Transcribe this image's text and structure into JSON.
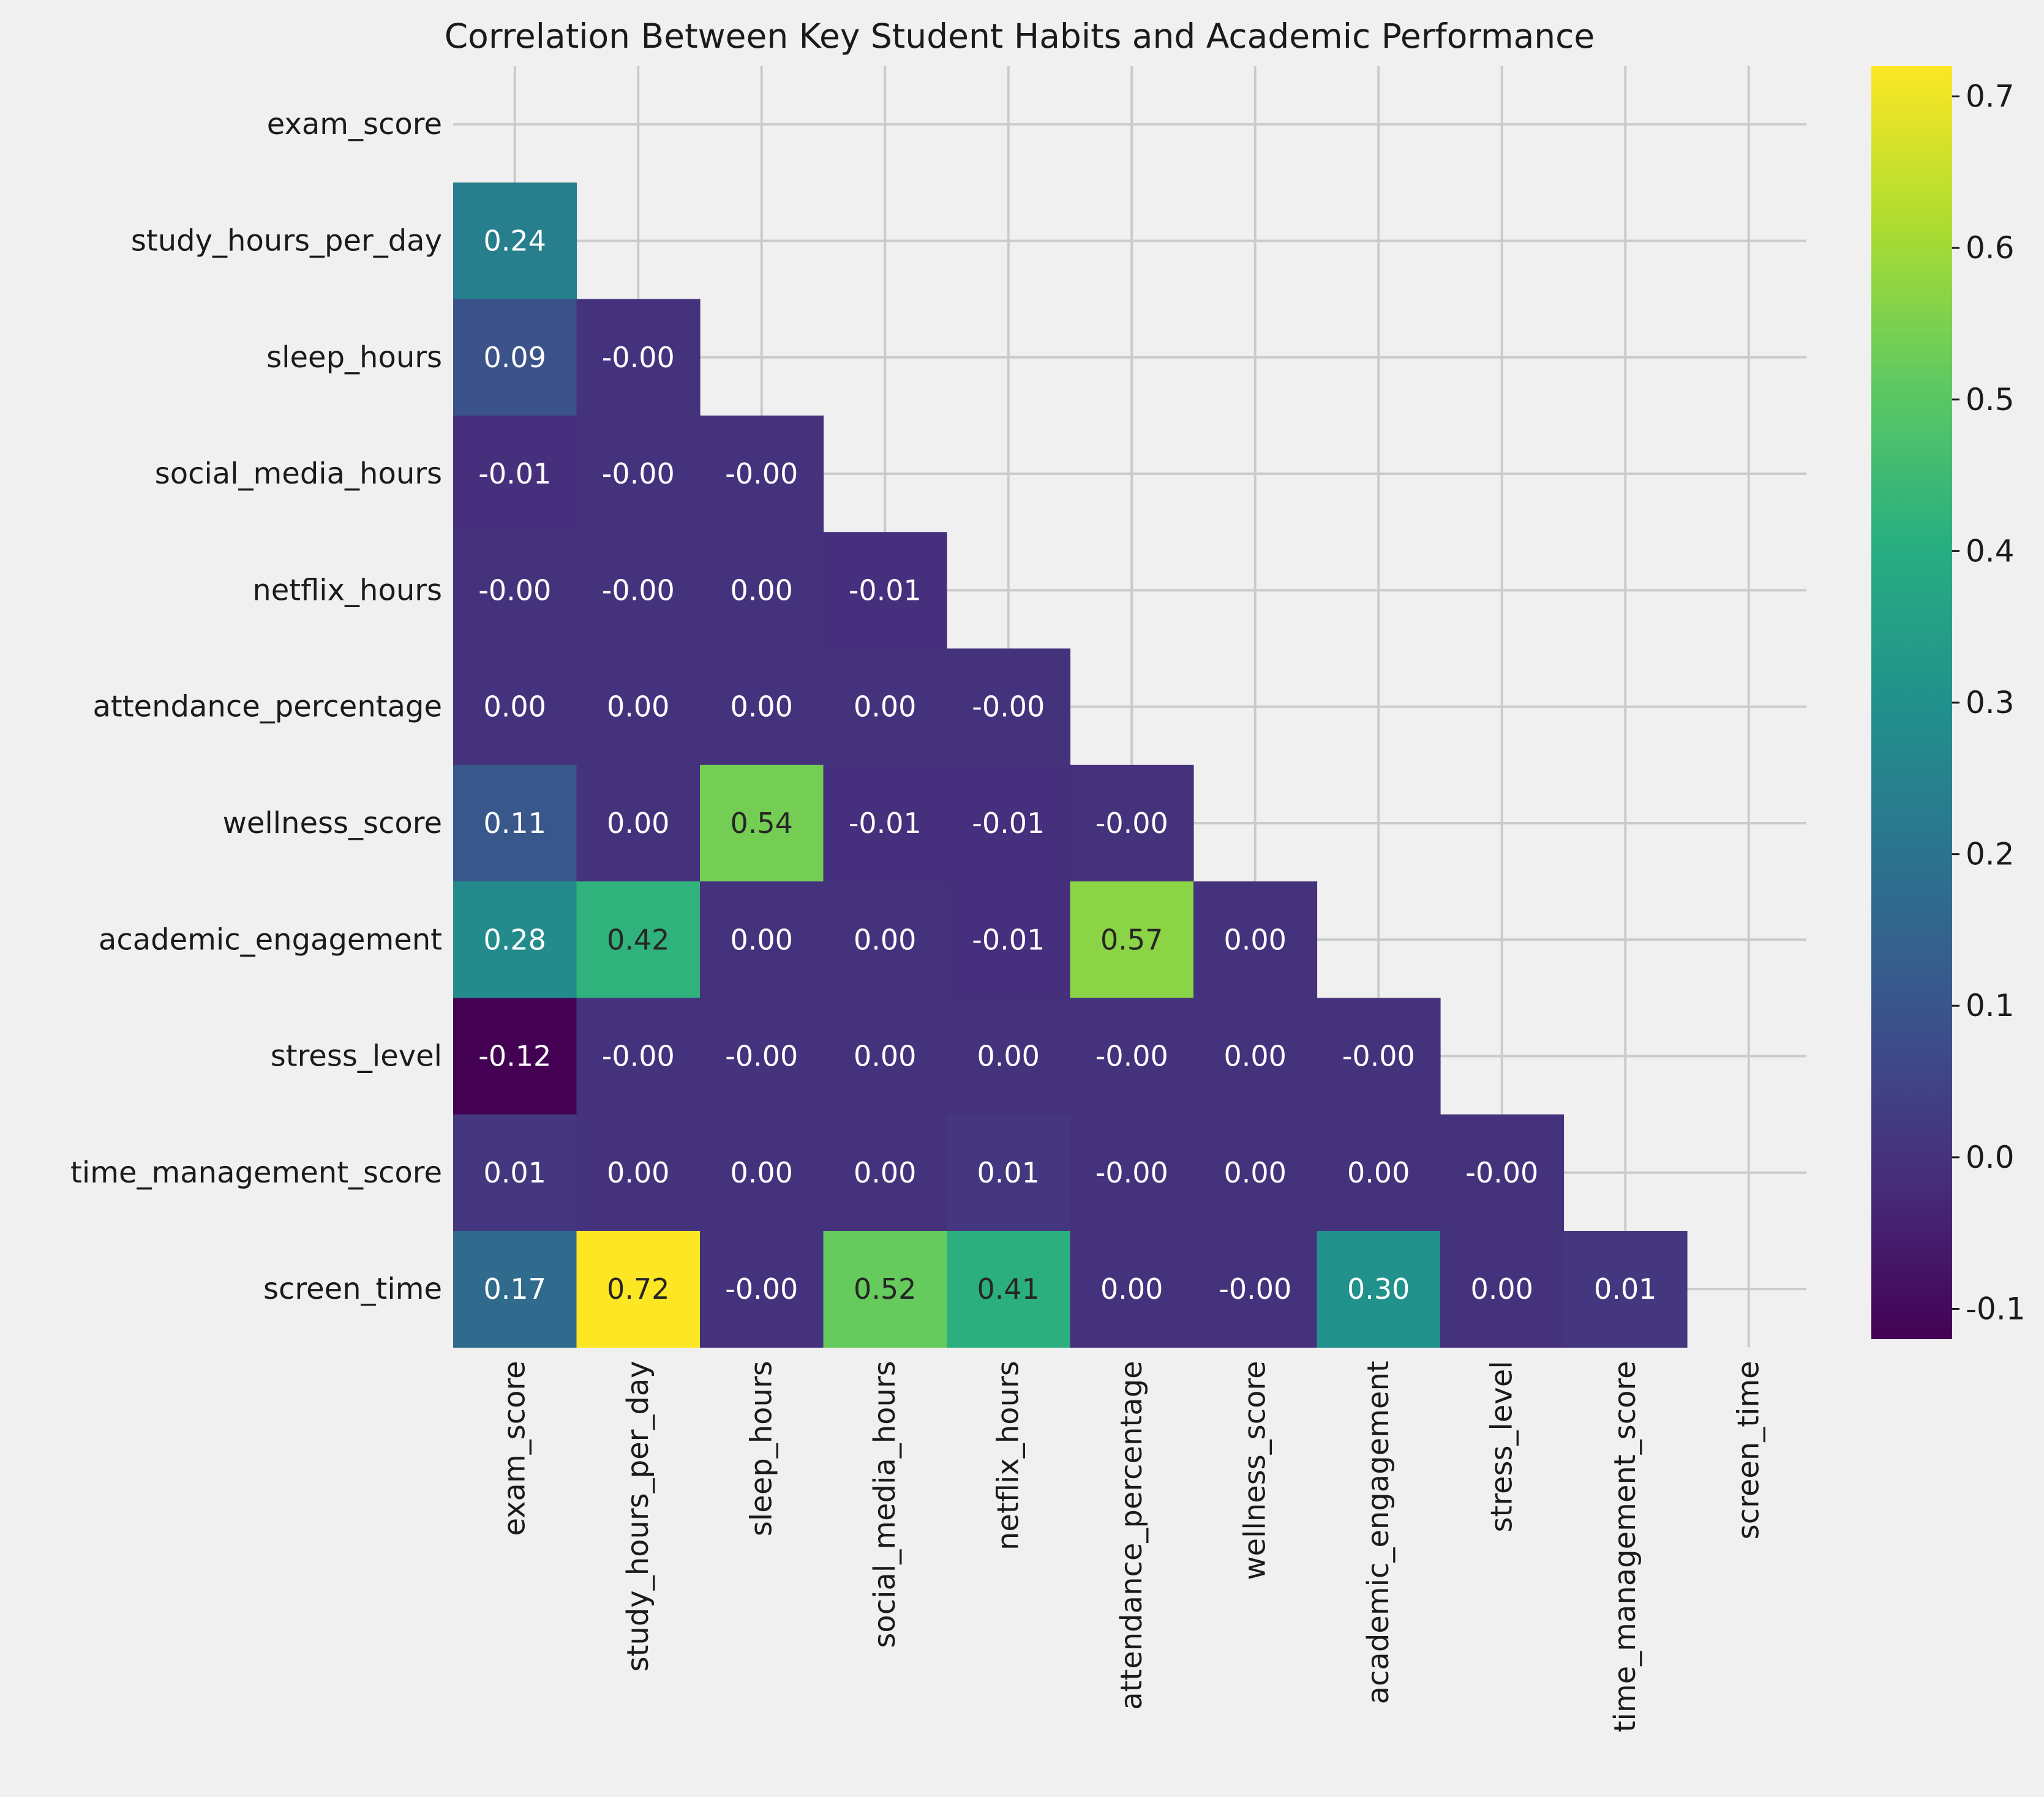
{
  "chart_data": {
    "type": "heatmap",
    "title": "Correlation Between Key Student Habits and Academic Performance",
    "rows": [
      "exam_score",
      "study_hours_per_day",
      "sleep_hours",
      "social_media_hours",
      "netflix_hours",
      "attendance_percentage",
      "wellness_score",
      "academic_engagement",
      "stress_level",
      "time_management_score",
      "screen_time"
    ],
    "columns": [
      "exam_score",
      "study_hours_per_day",
      "sleep_hours",
      "social_media_hours",
      "netflix_hours",
      "attendance_percentage",
      "wellness_score",
      "academic_engagement",
      "stress_level",
      "time_management_score",
      "screen_time"
    ],
    "mask": "upper triangle incl. diagonal",
    "values": [
      [],
      [
        0.24
      ],
      [
        0.09,
        -0.0
      ],
      [
        -0.01,
        -0.0,
        -0.0
      ],
      [
        -0.0,
        -0.0,
        0.0,
        -0.01
      ],
      [
        0.0,
        0.0,
        0.0,
        0.0,
        -0.0
      ],
      [
        0.11,
        0.0,
        0.54,
        -0.01,
        -0.01,
        -0.0
      ],
      [
        0.28,
        0.42,
        0.0,
        0.0,
        -0.01,
        0.57,
        0.0
      ],
      [
        -0.12,
        -0.0,
        -0.0,
        0.0,
        0.0,
        -0.0,
        0.0,
        -0.0
      ],
      [
        0.01,
        0.0,
        0.0,
        0.0,
        0.01,
        -0.0,
        0.0,
        0.0,
        -0.0
      ],
      [
        0.17,
        0.72,
        -0.0,
        0.52,
        0.41,
        0.0,
        -0.0,
        0.3,
        0.0,
        0.01
      ]
    ],
    "labels": [
      [],
      [
        "0.24"
      ],
      [
        "0.09",
        "-0.00"
      ],
      [
        "-0.01",
        "-0.00",
        "-0.00"
      ],
      [
        "-0.00",
        "-0.00",
        "0.00",
        "-0.01"
      ],
      [
        "0.00",
        "0.00",
        "0.00",
        "0.00",
        "-0.00"
      ],
      [
        "0.11",
        "0.00",
        "0.54",
        "-0.01",
        "-0.01",
        "-0.00"
      ],
      [
        "0.28",
        "0.42",
        "0.00",
        "0.00",
        "-0.01",
        "0.57",
        "0.00"
      ],
      [
        "-0.12",
        "-0.00",
        "-0.00",
        "0.00",
        "0.00",
        "-0.00",
        "0.00",
        "-0.00"
      ],
      [
        "0.01",
        "0.00",
        "0.00",
        "0.00",
        "0.01",
        "-0.00",
        "0.00",
        "0.00",
        "-0.00"
      ],
      [
        "0.17",
        "0.72",
        "-0.00",
        "0.52",
        "0.41",
        "0.00",
        "-0.00",
        "0.30",
        "0.00",
        "0.01"
      ]
    ],
    "colormap": "viridis",
    "vmin": -0.12,
    "vmax": 0.72,
    "colorbar_ticks": [
      -0.1,
      0.0,
      0.1,
      0.2,
      0.3,
      0.4,
      0.5,
      0.6,
      0.7
    ],
    "colorbar_tick_labels": [
      "-0.1",
      "0.0",
      "0.1",
      "0.2",
      "0.3",
      "0.4",
      "0.5",
      "0.6",
      "0.7"
    ],
    "grid": true,
    "background_color": "#f0f0f0",
    "grid_color": "#cbcbcb"
  }
}
